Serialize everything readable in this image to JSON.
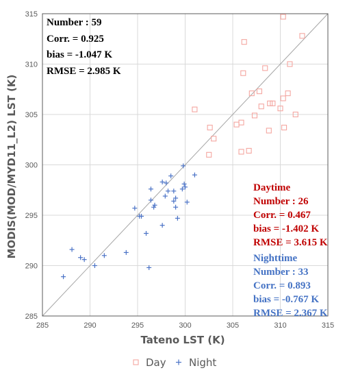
{
  "chart_data": {
    "type": "scatter",
    "xlabel": "Tateno LST (K)",
    "ylabel": "MODIS(MOD/MYD11_L2) LST (K)",
    "xlim": [
      285,
      315
    ],
    "ylim": [
      285,
      315
    ],
    "x_ticks": [
      "285",
      "290",
      "295",
      "300",
      "305",
      "310",
      "315"
    ],
    "y_ticks": [
      "285",
      "290",
      "295",
      "300",
      "305",
      "310",
      "315"
    ],
    "grid": true,
    "reference_line": "1:1",
    "overall_stats": [
      "Number : 59",
      "Corr. = 0.925",
      "bias = -1.047 K",
      "RMSE = 2.985 K"
    ],
    "day_stats": [
      "Daytime",
      "Number : 26",
      "Corr. = 0.467",
      "bias = -1.402 K",
      "RMSE = 3.615 K"
    ],
    "night_stats": [
      "Nighttime",
      "Number : 33",
      "Corr. = 0.893",
      "bias = -0.767 K",
      "RMSE = 2.367 K"
    ],
    "legend": {
      "placement": "bottom",
      "day_label": "Day",
      "night_label": "Night"
    },
    "colors": {
      "day": "#f4a6a0",
      "night": "#4a72c6",
      "day_text": "#c00000",
      "night_text": "#4472c4",
      "grid": "#d9d9d9",
      "axis": "#595959"
    },
    "series": [
      {
        "name": "Day",
        "marker": "open-square",
        "points": [
          [
            310.3,
            314.7
          ],
          [
            312.3,
            312.8
          ],
          [
            306.2,
            312.2
          ],
          [
            311.0,
            310.0
          ],
          [
            308.4,
            309.6
          ],
          [
            306.1,
            309.1
          ],
          [
            310.8,
            307.1
          ],
          [
            307.8,
            307.3
          ],
          [
            307.0,
            307.1
          ],
          [
            310.3,
            306.6
          ],
          [
            309.2,
            306.1
          ],
          [
            308.9,
            306.1
          ],
          [
            308.0,
            305.8
          ],
          [
            310.0,
            305.6
          ],
          [
            301.0,
            305.5
          ],
          [
            307.3,
            304.9
          ],
          [
            311.6,
            305.0
          ],
          [
            305.9,
            304.2
          ],
          [
            305.4,
            304.0
          ],
          [
            302.6,
            303.7
          ],
          [
            310.4,
            303.7
          ],
          [
            308.8,
            303.4
          ],
          [
            303.0,
            302.6
          ],
          [
            305.9,
            301.3
          ],
          [
            306.7,
            301.4
          ],
          [
            302.5,
            301.0
          ]
        ]
      },
      {
        "name": "Night",
        "marker": "plus",
        "points": [
          [
            299.8,
            299.9
          ],
          [
            299.9,
            298.1
          ],
          [
            300.0,
            297.8
          ],
          [
            299.7,
            297.6
          ],
          [
            297.6,
            298.3
          ],
          [
            298.0,
            298.2
          ],
          [
            296.4,
            297.6
          ],
          [
            298.2,
            297.4
          ],
          [
            298.8,
            297.4
          ],
          [
            299.0,
            296.7
          ],
          [
            298.8,
            296.4
          ],
          [
            296.4,
            296.5
          ],
          [
            300.2,
            296.3
          ],
          [
            296.8,
            296.0
          ],
          [
            296.7,
            295.8
          ],
          [
            299.0,
            295.8
          ],
          [
            294.7,
            295.7
          ],
          [
            295.2,
            294.9
          ],
          [
            295.4,
            294.9
          ],
          [
            299.2,
            294.7
          ],
          [
            297.6,
            294.0
          ],
          [
            295.9,
            293.2
          ],
          [
            296.2,
            289.8
          ],
          [
            293.8,
            291.3
          ],
          [
            288.1,
            291.6
          ],
          [
            289.0,
            290.8
          ],
          [
            289.4,
            290.6
          ],
          [
            291.5,
            291.0
          ],
          [
            290.5,
            290.0
          ],
          [
            287.2,
            288.9
          ],
          [
            301.0,
            299.0
          ],
          [
            297.9,
            296.9
          ],
          [
            298.5,
            298.9
          ]
        ]
      }
    ]
  }
}
